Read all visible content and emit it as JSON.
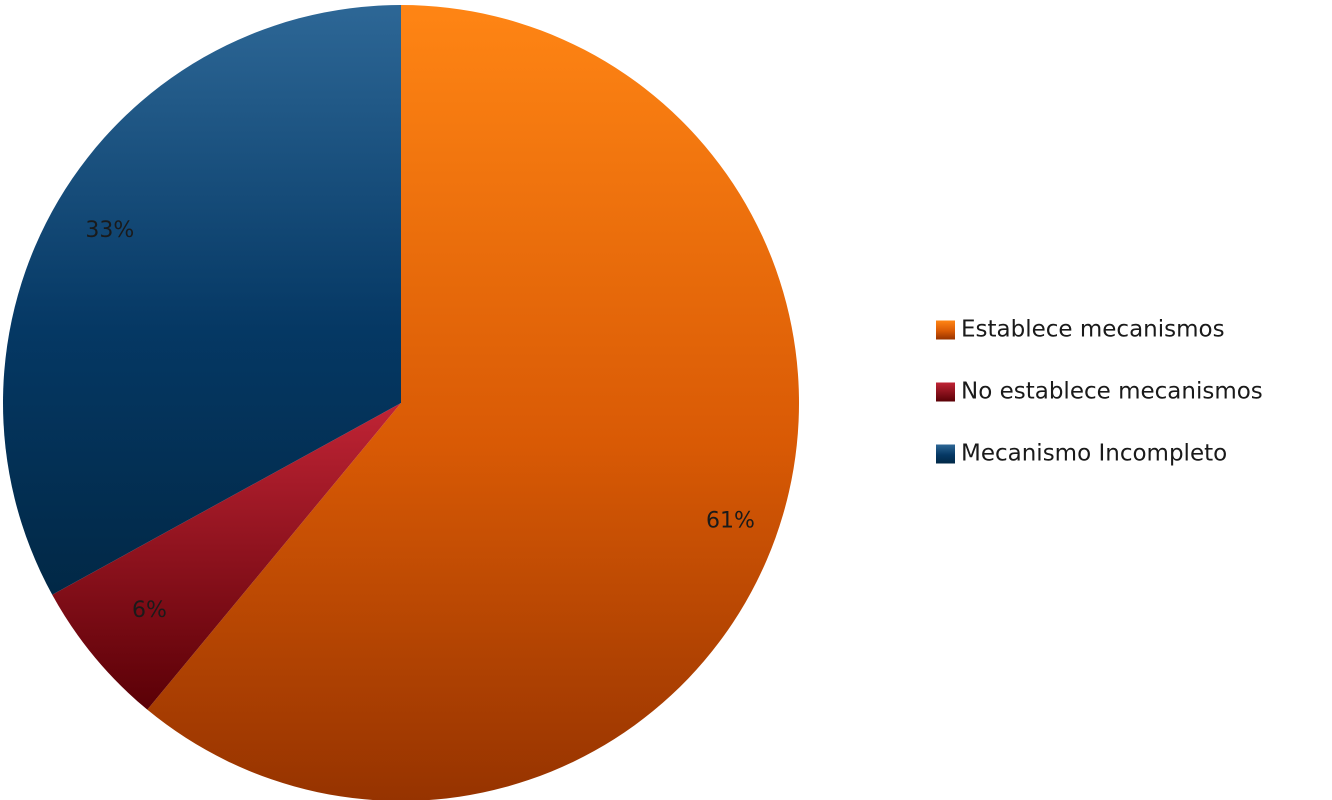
{
  "chart_data": {
    "type": "pie",
    "title": "",
    "legend_position": "right",
    "slices": [
      {
        "label": "Establece mecanismos",
        "value": 61,
        "value_label": "61%",
        "color": "#f07a10"
      },
      {
        "label": "No establece mecanismos",
        "value": 6,
        "value_label": "6%",
        "color": "#8a0f1c"
      },
      {
        "label": "Mecanismo Incompleto",
        "value": 33,
        "value_label": "33%",
        "color": "#12426b"
      }
    ]
  }
}
